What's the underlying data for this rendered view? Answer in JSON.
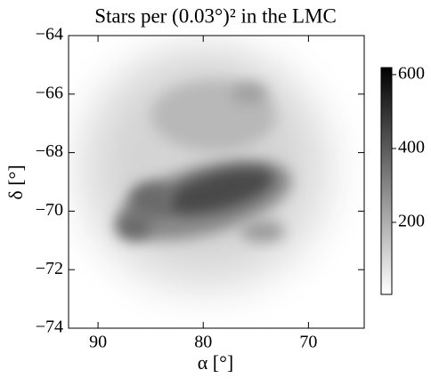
{
  "chart_data": {
    "type": "density-map",
    "title": "Stars per (0.03°)² in the LMC",
    "x_label": "α [°]",
    "y_label": "δ [°]",
    "xlim": [
      92.8,
      64.7
    ],
    "xticks": [
      90,
      80,
      70
    ],
    "ylim": [
      -74,
      -64
    ],
    "yticks": [
      {
        "value": -64,
        "label": "−64"
      },
      {
        "value": -66,
        "label": "−66"
      },
      {
        "value": -68,
        "label": "−68"
      },
      {
        "value": -70,
        "label": "−70"
      },
      {
        "value": -72,
        "label": "−72"
      },
      {
        "value": -74,
        "label": "−74"
      }
    ],
    "colormap": [
      "#ffffff",
      "#000000"
    ],
    "clim": [
      5,
      619
    ],
    "cticks": [
      200,
      400,
      600
    ]
  }
}
